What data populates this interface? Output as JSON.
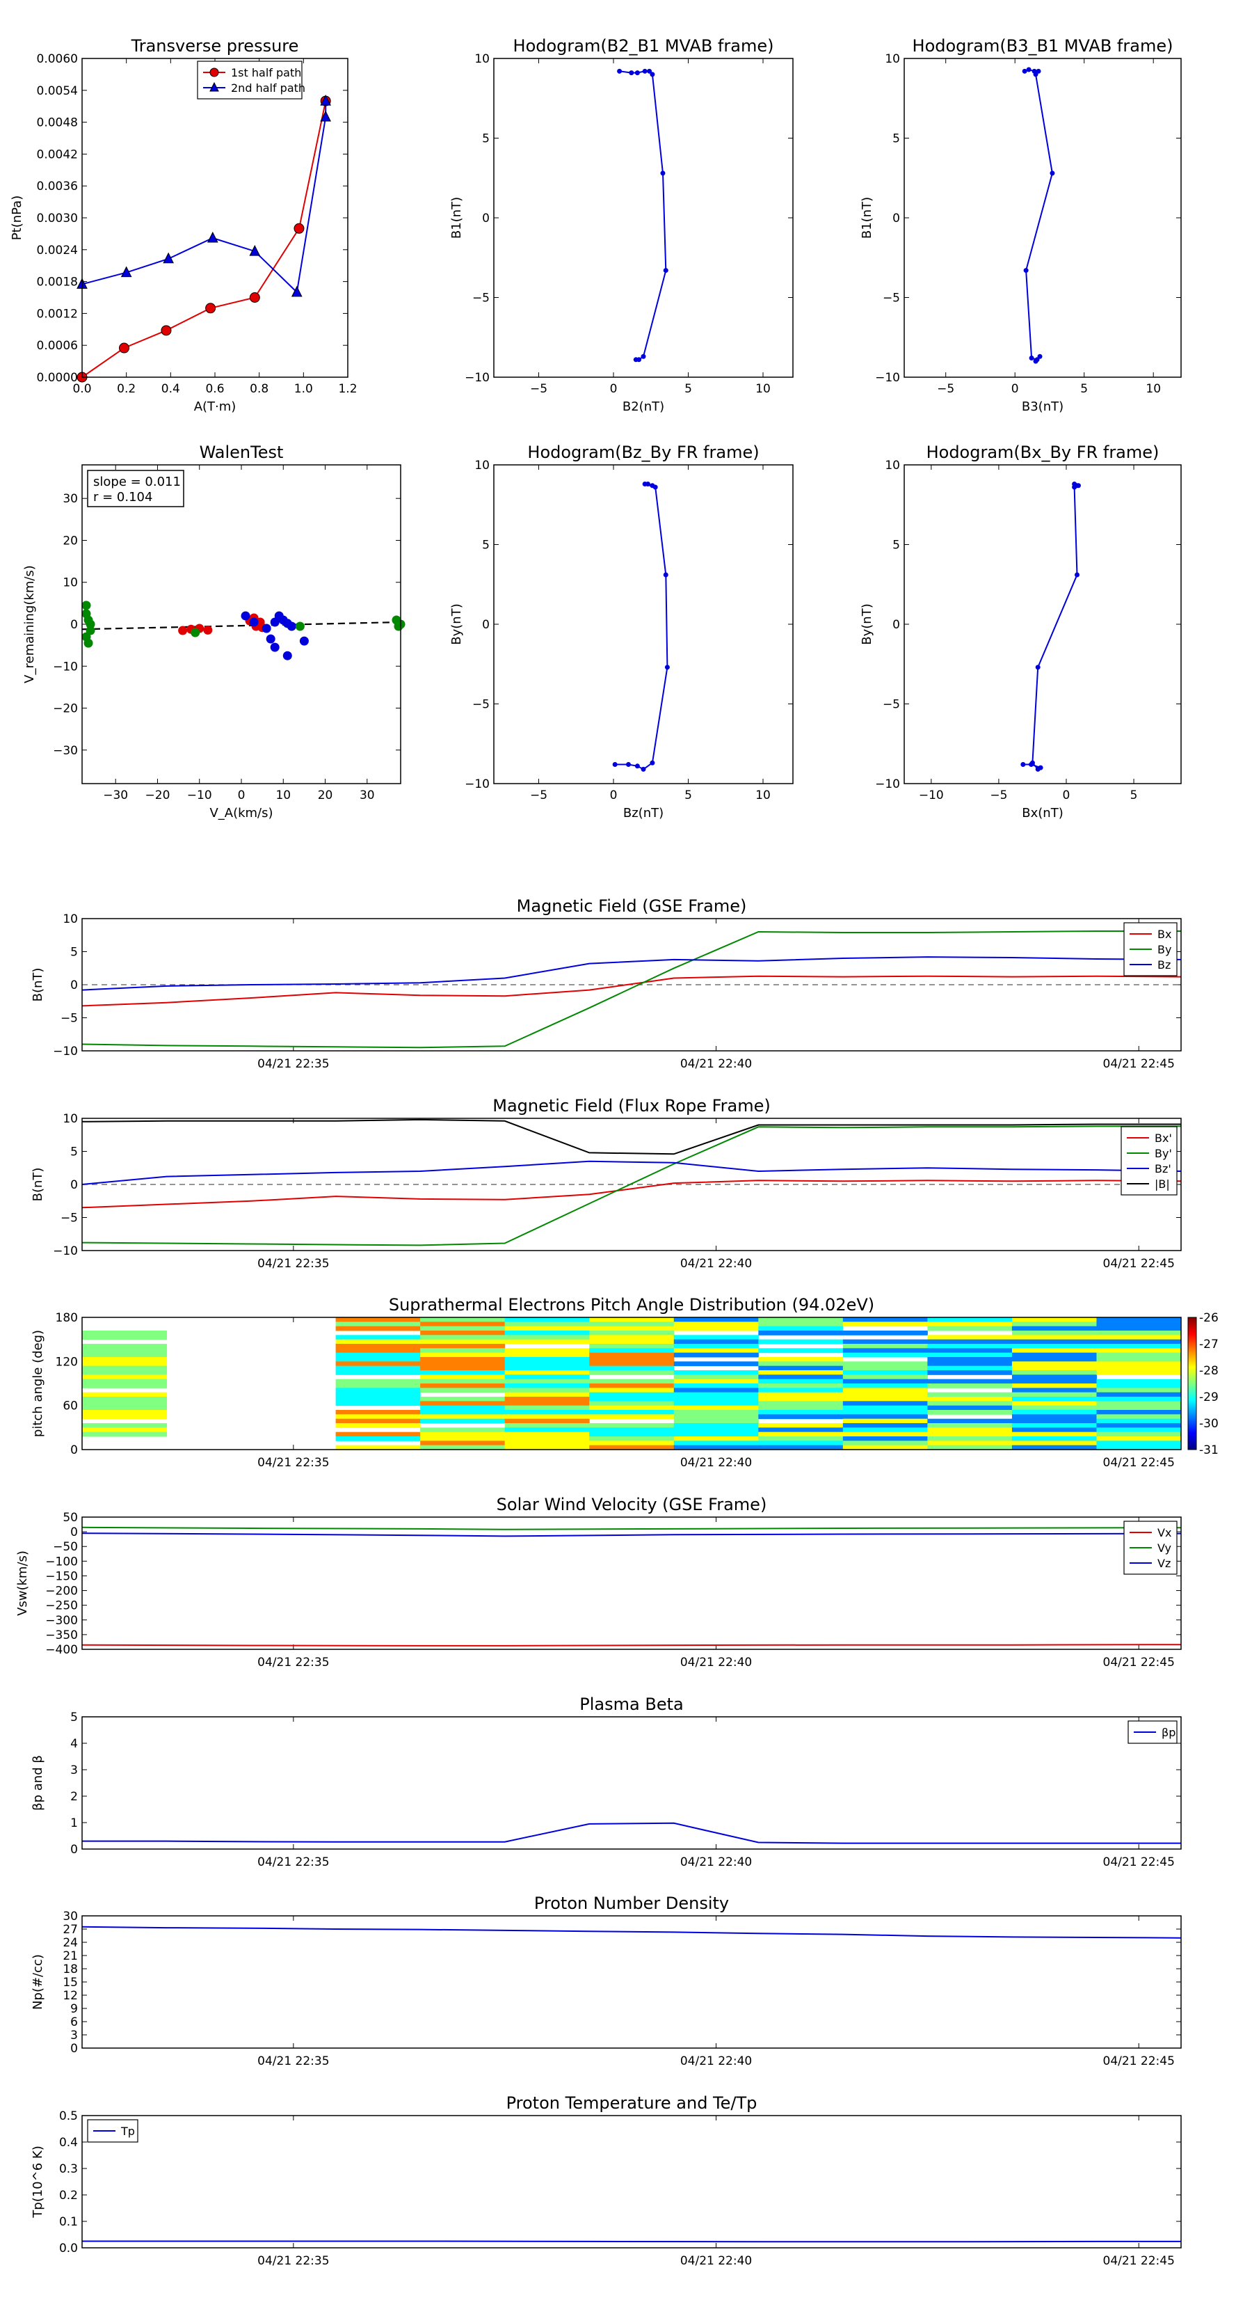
{
  "colors": {
    "red": "#e00000",
    "green": "#008800",
    "blue": "#0000dd",
    "black": "#000000",
    "dash": "#555555"
  },
  "time_ticks": [
    "04/21 22:35",
    "04/21 22:40",
    "04/21 22:45"
  ],
  "chart_data": [
    {
      "type": "line",
      "title": "Transverse pressure",
      "xlabel": "A(T·m)",
      "ylabel": "Pt(nPa)",
      "xlim": [
        0.0,
        1.2
      ],
      "ylim": [
        0.0,
        0.006
      ],
      "xticks": [
        "0.0",
        "0.2",
        "0.4",
        "0.6",
        "0.8",
        "1.0",
        "1.2"
      ],
      "yticks": [
        "0.0000",
        "0.0006",
        "0.0012",
        "0.0018",
        "0.0024",
        "0.0030",
        "0.0036",
        "0.0042",
        "0.0048",
        "0.0054",
        "0.0060"
      ],
      "legend": "top-center",
      "series": [
        {
          "name": "1st half path",
          "color": "red",
          "marker": "circle",
          "x": [
            0.0,
            0.19,
            0.38,
            0.58,
            0.78,
            0.98,
            1.1
          ],
          "y": [
            0.0,
            0.00055,
            0.00088,
            0.0013,
            0.0015,
            0.0028,
            0.0052
          ]
        },
        {
          "name": "2nd half path",
          "color": "blue",
          "marker": "triangle",
          "x": [
            0.0,
            0.2,
            0.39,
            0.59,
            0.78,
            0.97,
            1.1,
            1.1
          ],
          "y": [
            0.00175,
            0.00197,
            0.00223,
            0.00262,
            0.00237,
            0.0016,
            0.0049,
            0.0052
          ]
        }
      ]
    },
    {
      "type": "line",
      "title": "Hodogram(B2_B1 MVAB frame)",
      "xlabel": "B2(nT)",
      "ylabel": "B1(nT)",
      "xlim": [
        -8,
        12
      ],
      "ylim": [
        -10,
        10
      ],
      "xticks": [
        "−5",
        "0",
        "5",
        "10"
      ],
      "yticks": [
        "−10",
        "−5",
        "0",
        "5",
        "10"
      ],
      "series": [
        {
          "color": "blue",
          "marker": "dot",
          "x": [
            0.4,
            1.2,
            1.6,
            2.1,
            2.4,
            2.6,
            3.3,
            3.5,
            2.0,
            1.7,
            1.5
          ],
          "y": [
            9.2,
            9.1,
            9.1,
            9.2,
            9.2,
            9.0,
            2.8,
            -3.3,
            -8.7,
            -8.9,
            -8.9
          ]
        }
      ]
    },
    {
      "type": "line",
      "title": "Hodogram(B3_B1 MVAB frame)",
      "xlabel": "B3(nT)",
      "ylabel": "B1(nT)",
      "xlim": [
        -8,
        12
      ],
      "ylim": [
        -10,
        10
      ],
      "xticks": [
        "−5",
        "0",
        "5",
        "10"
      ],
      "yticks": [
        "−10",
        "−5",
        "0",
        "5",
        "10"
      ],
      "series": [
        {
          "color": "blue",
          "marker": "dot",
          "x": [
            0.7,
            1.0,
            1.4,
            1.7,
            1.5,
            2.7,
            0.8,
            1.2,
            1.6,
            1.8,
            1.5
          ],
          "y": [
            9.2,
            9.3,
            9.2,
            9.2,
            9.0,
            2.8,
            -3.3,
            -8.8,
            -8.9,
            -8.7,
            -9.0
          ]
        }
      ]
    },
    {
      "type": "scatter",
      "title": "WalenTest",
      "xlabel": "V_A(km/s)",
      "ylabel": "V_remaining(km/s)",
      "xlim": [
        -38,
        38
      ],
      "ylim": [
        -38,
        38
      ],
      "xticks": [
        "−30",
        "−20",
        "−10",
        "0",
        "10",
        "20",
        "30"
      ],
      "yticks": [
        "−30",
        "−20",
        "−10",
        "0",
        "10",
        "20",
        "30"
      ],
      "annotation": [
        "slope = 0.011",
        "r = 0.104"
      ],
      "fit_line": {
        "x": [
          -38,
          38
        ],
        "y": [
          -1.2,
          0.5
        ]
      },
      "series": [
        {
          "color": "red",
          "x": [
            -14,
            -12,
            -11,
            -10,
            -8,
            2,
            3,
            3.5,
            4,
            5,
            4.5
          ],
          "y": [
            -1.5,
            -1.2,
            -1.8,
            -1.0,
            -1.4,
            0.8,
            1.5,
            -0.5,
            0.2,
            -0.8,
            0.5
          ]
        },
        {
          "color": "blue",
          "x": [
            1,
            3,
            6,
            7,
            8,
            9,
            10,
            11,
            12,
            11,
            8,
            15
          ],
          "y": [
            2.0,
            0.5,
            -1.0,
            -3.5,
            -5.5,
            2.0,
            1.0,
            0.2,
            -0.5,
            -7.5,
            0.5,
            -4.0
          ]
        },
        {
          "color": "green",
          "x": [
            -37,
            -37,
            -36.5,
            -36,
            -36,
            -37,
            -36.5,
            -11,
            14,
            37,
            38,
            37.5
          ],
          "y": [
            4.5,
            2.5,
            1.0,
            0.0,
            -1.5,
            -3.0,
            -4.5,
            -2.0,
            -0.5,
            1.0,
            0.0,
            -0.5
          ]
        }
      ]
    },
    {
      "type": "line",
      "title": "Hodogram(Bz_By FR frame)",
      "xlabel": "Bz(nT)",
      "ylabel": "By(nT)",
      "xlim": [
        -8,
        12
      ],
      "ylim": [
        -10,
        10
      ],
      "xticks": [
        "−5",
        "0",
        "5",
        "10"
      ],
      "yticks": [
        "−10",
        "−5",
        "0",
        "5",
        "10"
      ],
      "series": [
        {
          "color": "blue",
          "marker": "dot",
          "x": [
            2.3,
            2.6,
            2.1,
            2.8,
            3.5,
            3.6,
            2.6,
            2.0,
            1.6,
            1.0,
            0.1
          ],
          "y": [
            8.8,
            8.7,
            8.8,
            8.6,
            3.1,
            -2.7,
            -8.7,
            -9.1,
            -8.9,
            -8.8,
            -8.8
          ]
        }
      ]
    },
    {
      "type": "line",
      "title": "Hodogram(Bx_By FR frame)",
      "xlabel": "Bx(nT)",
      "ylabel": "By(nT)",
      "xlim": [
        -12,
        8.5
      ],
      "ylim": [
        -10,
        10
      ],
      "xticks": [
        "−10",
        "−5",
        "0",
        "5"
      ],
      "yticks": [
        "−10",
        "−5",
        "0",
        "5",
        "10"
      ],
      "series": [
        {
          "color": "blue",
          "marker": "dot",
          "x": [
            0.6,
            0.8,
            0.9,
            0.6,
            0.8,
            -2.1,
            -2.5,
            -2.1,
            -1.9,
            -2.6,
            -3.2
          ],
          "y": [
            8.8,
            8.7,
            8.7,
            8.6,
            3.1,
            -2.7,
            -8.7,
            -9.1,
            -9.0,
            -8.8,
            -8.8
          ]
        }
      ]
    },
    {
      "type": "line",
      "title": "Magnetic Field (GSE Frame)",
      "ylabel": "B(nT)",
      "ylim": [
        -10,
        10
      ],
      "yticks": [
        "−10",
        "−5",
        "0",
        "5",
        "10"
      ],
      "xlim": [
        0,
        13
      ],
      "zero_line": true,
      "legend": "top-right",
      "series": [
        {
          "name": "Bx",
          "color": "red",
          "x": [
            0,
            1,
            2,
            3,
            4,
            5,
            6,
            7,
            8,
            9,
            10,
            11,
            12,
            13
          ],
          "y": [
            -3.2,
            -2.7,
            -2.0,
            -1.2,
            -1.6,
            -1.7,
            -0.8,
            1.0,
            1.3,
            1.2,
            1.3,
            1.2,
            1.3,
            1.2
          ]
        },
        {
          "name": "By",
          "color": "green",
          "x": [
            0,
            1,
            2,
            3,
            4,
            5,
            6,
            7,
            8,
            9,
            10,
            11,
            12,
            13
          ],
          "y": [
            -9.0,
            -9.2,
            -9.3,
            -9.4,
            -9.5,
            -9.3,
            -3.5,
            2.5,
            8.0,
            7.9,
            7.9,
            8.0,
            8.1,
            8.1
          ]
        },
        {
          "name": "Bz",
          "color": "blue",
          "x": [
            0,
            1,
            2,
            3,
            4,
            5,
            6,
            7,
            8,
            9,
            10,
            11,
            12,
            13
          ],
          "y": [
            -0.8,
            -0.2,
            0.0,
            0.1,
            0.3,
            1.0,
            3.2,
            3.8,
            3.6,
            4.0,
            4.2,
            4.1,
            3.9,
            3.8
          ]
        }
      ]
    },
    {
      "type": "line",
      "title": "Magnetic Field (Flux Rope Frame)",
      "ylabel": "B(nT)",
      "ylim": [
        -10,
        10
      ],
      "yticks": [
        "−10",
        "−5",
        "0",
        "5",
        "10"
      ],
      "xlim": [
        0,
        13
      ],
      "zero_line": true,
      "legend": "right",
      "series": [
        {
          "name": "Bx'",
          "color": "red",
          "x": [
            0,
            1,
            2,
            3,
            4,
            5,
            6,
            7,
            8,
            9,
            10,
            11,
            12,
            13
          ],
          "y": [
            -3.5,
            -3.0,
            -2.5,
            -1.8,
            -2.2,
            -2.3,
            -1.5,
            0.2,
            0.6,
            0.5,
            0.6,
            0.5,
            0.6,
            0.5
          ]
        },
        {
          "name": "By'",
          "color": "green",
          "x": [
            0,
            1,
            2,
            3,
            4,
            5,
            6,
            7,
            8,
            9,
            10,
            11,
            12,
            13
          ],
          "y": [
            -8.8,
            -8.9,
            -9.0,
            -9.1,
            -9.2,
            -8.9,
            -2.9,
            3.1,
            8.7,
            8.6,
            8.7,
            8.7,
            8.8,
            8.8
          ]
        },
        {
          "name": "Bz'",
          "color": "blue",
          "x": [
            0,
            1,
            2,
            3,
            4,
            5,
            6,
            7,
            8,
            9,
            10,
            11,
            12,
            13
          ],
          "y": [
            0.0,
            1.2,
            1.5,
            1.8,
            2.0,
            2.7,
            3.5,
            3.3,
            2.0,
            2.3,
            2.5,
            2.3,
            2.2,
            2.0
          ]
        },
        {
          "name": "|B|",
          "color": "black",
          "x": [
            0,
            1,
            2,
            3,
            4,
            5,
            6,
            7,
            8,
            9,
            10,
            11,
            12,
            13
          ],
          "y": [
            9.5,
            9.6,
            9.6,
            9.6,
            9.8,
            9.6,
            4.8,
            4.6,
            9.0,
            9.0,
            9.0,
            9.0,
            9.1,
            9.1
          ]
        }
      ]
    },
    {
      "type": "heatmap",
      "title": "Suprathermal Electrons Pitch Angle Distribution (94.02eV)",
      "ylabel": "pitch angle (deg)",
      "ylim": [
        0,
        180
      ],
      "yticks": [
        "0",
        "60",
        "120",
        "180"
      ],
      "xlim": [
        0,
        13
      ],
      "colorbar": {
        "min_exp": -31,
        "max_exp": -26,
        "labels": [
          "-26",
          "-27",
          "-28",
          "-29",
          "-30",
          "-31"
        ]
      },
      "columns_with_data": [
        0,
        3,
        4,
        5,
        6,
        7,
        8,
        9,
        10,
        11,
        12
      ],
      "note_levels": "per-cell levels 0 (low) to 1 (high)"
    },
    {
      "type": "line",
      "title": "Solar Wind Velocity (GSE Frame)",
      "ylabel": "Vsw(km/s)",
      "ylim": [
        -400,
        50
      ],
      "yticks": [
        "−400",
        "−350",
        "−300",
        "−250",
        "−200",
        "−150",
        "−100",
        "−50",
        "0",
        "50"
      ],
      "xlim": [
        0,
        13
      ],
      "legend": "top-right",
      "series": [
        {
          "name": "Vx",
          "color": "red",
          "x": [
            0,
            2,
            4,
            5,
            7,
            9,
            11,
            13
          ],
          "y": [
            -385,
            -387,
            -388,
            -388,
            -386,
            -385,
            -385,
            -384
          ]
        },
        {
          "name": "Vy",
          "color": "green",
          "x": [
            0,
            2,
            4,
            5,
            7,
            9,
            11,
            13
          ],
          "y": [
            15,
            12,
            10,
            8,
            10,
            12,
            13,
            14
          ]
        },
        {
          "name": "Vz",
          "color": "blue",
          "x": [
            0,
            2,
            4,
            5,
            7,
            9,
            11,
            13
          ],
          "y": [
            -5,
            -8,
            -12,
            -15,
            -10,
            -8,
            -7,
            -6
          ]
        }
      ]
    },
    {
      "type": "line",
      "title": "Plasma Beta",
      "ylabel": "βp and β",
      "ylim": [
        0,
        5
      ],
      "yticks": [
        "0",
        "1",
        "2",
        "3",
        "4",
        "5"
      ],
      "xlim": [
        0,
        13
      ],
      "legend": "top-right",
      "series": [
        {
          "name": "βp",
          "color": "blue",
          "x": [
            0,
            1,
            2,
            3,
            4,
            5,
            6,
            7,
            8,
            9,
            10,
            11,
            12,
            13
          ],
          "y": [
            0.3,
            0.3,
            0.28,
            0.27,
            0.27,
            0.27,
            0.95,
            0.98,
            0.25,
            0.22,
            0.22,
            0.22,
            0.22,
            0.22
          ]
        }
      ]
    },
    {
      "type": "line",
      "title": "Proton Number Density",
      "ylabel": "Np(#/cc)",
      "ylim": [
        0,
        30
      ],
      "yticks": [
        "0",
        "3",
        "6",
        "9",
        "12",
        "15",
        "18",
        "21",
        "24",
        "27",
        "30"
      ],
      "xlim": [
        0,
        13
      ],
      "series": [
        {
          "name": "Np",
          "color": "blue",
          "x": [
            0,
            1,
            2,
            3,
            4,
            5,
            6,
            7,
            8,
            9,
            10,
            11,
            12,
            13
          ],
          "y": [
            27.5,
            27.3,
            27.2,
            27.0,
            26.9,
            26.7,
            26.5,
            26.3,
            26.0,
            25.8,
            25.4,
            25.2,
            25.1,
            25.0
          ]
        }
      ]
    },
    {
      "type": "line",
      "title": "Proton Temperature and Te/Tp",
      "ylabel": "Tp(10^6 K)",
      "ylim": [
        0,
        0.5
      ],
      "yticks": [
        "0.0",
        "0.1",
        "0.2",
        "0.3",
        "0.4",
        "0.5"
      ],
      "xlim": [
        0,
        13
      ],
      "legend": "top-left",
      "series": [
        {
          "name": "Tp",
          "color": "blue",
          "x": [
            0,
            2,
            4,
            6,
            8,
            10,
            12,
            13
          ],
          "y": [
            0.025,
            0.025,
            0.025,
            0.024,
            0.023,
            0.023,
            0.024,
            0.024
          ]
        }
      ]
    }
  ]
}
